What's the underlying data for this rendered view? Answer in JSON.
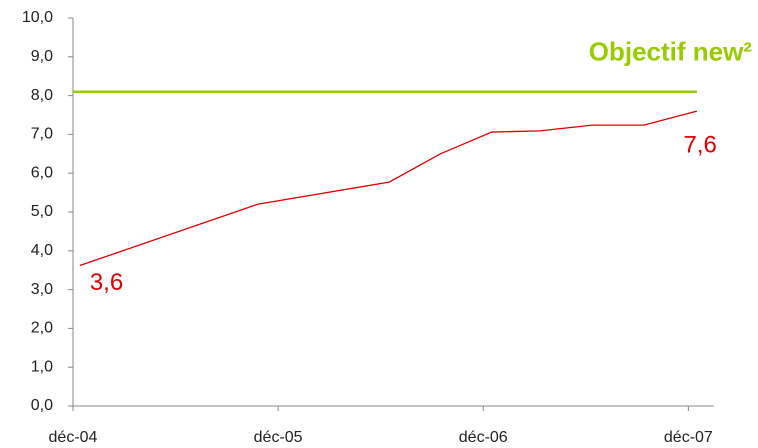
{
  "chart_data": {
    "type": "line",
    "x": [
      0.4,
      10.8,
      18.5,
      21.5,
      24.5,
      27.3,
      30.4,
      33.4,
      36.5
    ],
    "series": [
      {
        "name": null,
        "color": "#e00000",
        "values": [
          3.62,
          5.2,
          5.77,
          6.5,
          7.06,
          7.09,
          7.24,
          7.24,
          7.6
        ],
        "value_labels": [
          "3,6",
          null,
          null,
          null,
          null,
          null,
          null,
          null,
          "7,6"
        ]
      }
    ],
    "target": {
      "name": "Objectif new²",
      "value": 8.1,
      "color": "#99cc00"
    },
    "xlim": [
      0,
      37.5
    ],
    "xticks": [
      {
        "value": 0,
        "label": "déc-04"
      },
      {
        "value": 12,
        "label": "déc-05"
      },
      {
        "value": 24,
        "label": "déc-06"
      },
      {
        "value": 36,
        "label": "déc-07"
      }
    ],
    "ylim": [
      0,
      10
    ],
    "yticks": [
      {
        "value": 0,
        "label": "0,0"
      },
      {
        "value": 1,
        "label": "1,0"
      },
      {
        "value": 2,
        "label": "2,0"
      },
      {
        "value": 3,
        "label": "3,0"
      },
      {
        "value": 4,
        "label": "4,0"
      },
      {
        "value": 5,
        "label": "5,0"
      },
      {
        "value": 6,
        "label": "6,0"
      },
      {
        "value": 7,
        "label": "7,0"
      },
      {
        "value": 8,
        "label": "8,0"
      },
      {
        "value": 9,
        "label": "9,0"
      },
      {
        "value": 10,
        "label": "10,0"
      }
    ],
    "grid": false
  }
}
